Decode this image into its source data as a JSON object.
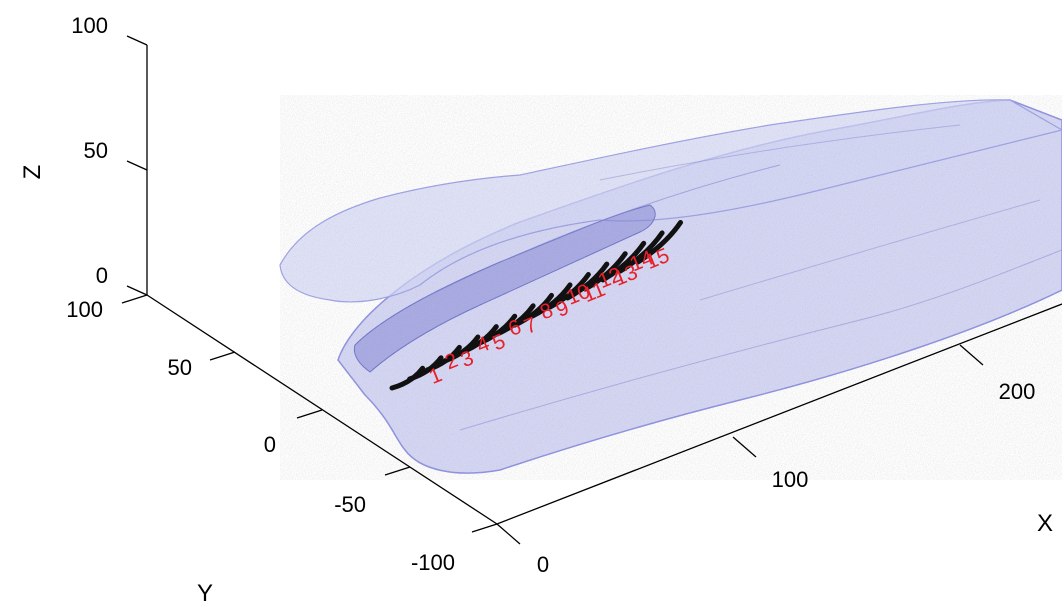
{
  "chart_data": {
    "type": "scatter",
    "title": "",
    "xlabel": "X",
    "ylabel": "Y",
    "zlabel": "Z",
    "grid": false,
    "x_ticks": [
      "0",
      "100",
      "200"
    ],
    "y_ticks": [
      "-100",
      "-50",
      "0",
      "50",
      "100"
    ],
    "z_ticks": [
      "0",
      "50",
      "100"
    ],
    "xlim": [
      0,
      250
    ],
    "ylim": [
      -100,
      100
    ],
    "zlim": [
      0,
      100
    ],
    "annotation_color": "#e8202a",
    "mesh_color": "#8a8ee0",
    "marker_color": "#111111",
    "markers": [
      {
        "label": "1"
      },
      {
        "label": "2"
      },
      {
        "label": "3"
      },
      {
        "label": "4"
      },
      {
        "label": "5"
      },
      {
        "label": "6"
      },
      {
        "label": "7"
      },
      {
        "label": "8"
      },
      {
        "label": "9"
      },
      {
        "label": "10"
      },
      {
        "label": "11"
      },
      {
        "label": "12"
      },
      {
        "label": "13"
      },
      {
        "label": "14"
      },
      {
        "label": "15"
      }
    ]
  }
}
